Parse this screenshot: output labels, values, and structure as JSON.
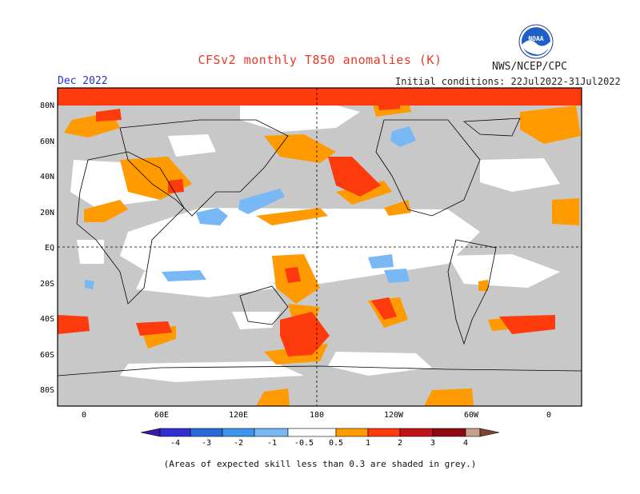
{
  "header": {
    "title": "CFSv2 monthly T850 anomalies (K)",
    "agency": "NWS/NCEP/CPC",
    "month": "Dec 2022",
    "initial_conditions": "Initial conditions: 22Jul2022-31Jul2022",
    "logo_text": "NOAA"
  },
  "map": {
    "lon_ticks": [
      "0",
      "60E",
      "120E",
      "180",
      "120W",
      "60W",
      "0"
    ],
    "lat_ticks": [
      "80N",
      "60N",
      "40N",
      "20N",
      "EQ",
      "20S",
      "40S",
      "60S",
      "80S"
    ]
  },
  "colorbar": {
    "labels": [
      "-4",
      "-3",
      "-2",
      "-1",
      "-0.5",
      "0.5",
      "1",
      "2",
      "3",
      "4"
    ],
    "colors": {
      "lt_-4": "#3a1aa0",
      "-4_-3": "#3030d0",
      "-3_-2": "#2a6ad8",
      "-2_-1": "#3c96f0",
      "-1_-0.5": "#78b8f4",
      "-0.5_0.5": "#ffffff",
      "0.5_1": "#ff9a00",
      "1_2": "#fd3b0d",
      "2_3": "#c0141a",
      "3_4": "#8c0a0f",
      "4_up": "#c8a090",
      "gt_4": "#7a4630"
    },
    "skill_grey": "#c8c8c8"
  },
  "caption": "(Areas of expected skill less than 0.3 are shaded in grey.)"
}
